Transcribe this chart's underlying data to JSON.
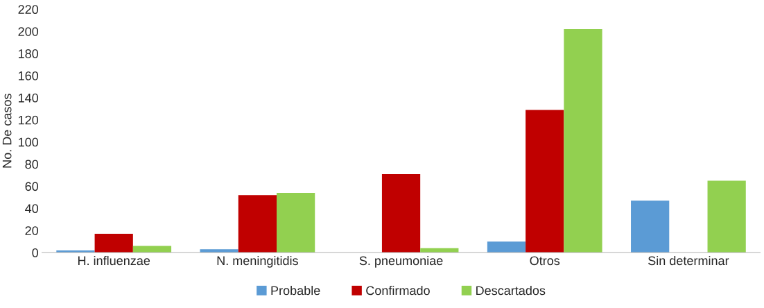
{
  "chart_data": {
    "type": "bar",
    "ylabel": "No. De casos",
    "categories": [
      "H. influenzae",
      "N. meningitidis",
      "S. pneumoniae",
      "Otros",
      "Sin determinar"
    ],
    "series": [
      {
        "name": "Probable",
        "color": "#5b9bd5",
        "values": [
          2,
          3,
          null,
          10,
          47
        ]
      },
      {
        "name": "Confirmado",
        "color": "#c00000",
        "values": [
          17,
          52,
          71,
          129,
          null
        ]
      },
      {
        "name": "Descartados",
        "color": "#92d050",
        "values": [
          6,
          54,
          4,
          202,
          65
        ]
      }
    ],
    "ylim": [
      0,
      220
    ],
    "yticks": [
      0,
      20,
      40,
      60,
      80,
      100,
      120,
      140,
      160,
      180,
      200,
      220
    ],
    "grid": false,
    "legend": "bottom"
  }
}
